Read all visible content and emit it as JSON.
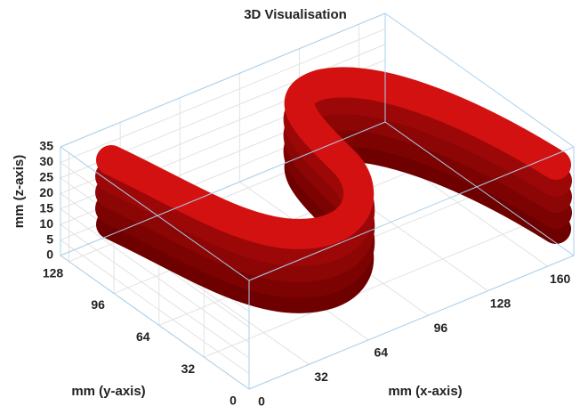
{
  "chart_data": {
    "type": "surface3d",
    "title": "3D Visualisation",
    "xlabel": "mm (x-axis)",
    "ylabel": "mm (y-axis)",
    "zlabel": "mm (z-axis)",
    "xlim": [
      0,
      174
    ],
    "ylim": [
      0,
      134
    ],
    "zlim": [
      0,
      35
    ],
    "xticks": [
      0,
      32,
      64,
      96,
      128,
      160
    ],
    "yticks": [
      0,
      32,
      64,
      96,
      128
    ],
    "zticks": [
      0,
      5,
      10,
      15,
      20,
      25,
      30,
      35
    ],
    "color": "#d41111",
    "grid": true
  }
}
